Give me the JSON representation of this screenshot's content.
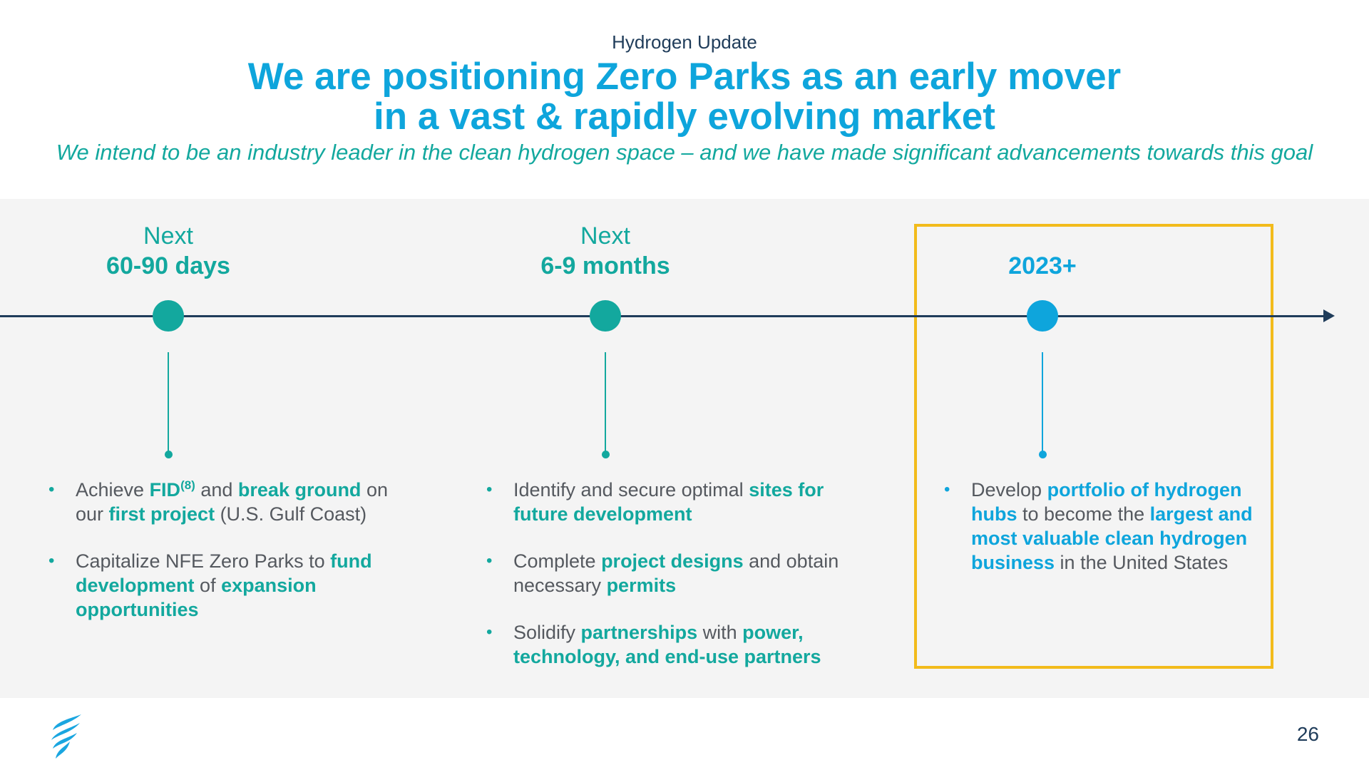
{
  "header": {
    "section_label": "Hydrogen Update",
    "title_line1": "We are positioning Zero Parks as an early mover",
    "title_line2": "in a vast & rapidly evolving market",
    "subtitle": "We intend to be an industry leader in the clean hydrogen space – and we have made significant advancements towards this goal"
  },
  "timeline": [
    {
      "pre": "Next",
      "label": "60-90 days",
      "color": "#13a89e",
      "bullets": [
        [
          {
            "t": "Achieve "
          },
          {
            "t": "FID",
            "h": true
          },
          {
            "t": "(8)",
            "sup": true
          },
          {
            "t": " and "
          },
          {
            "t": "break ground",
            "h": true
          },
          {
            "t": " on our "
          },
          {
            "t": "first project",
            "h": true
          },
          {
            "t": " (U.S. Gulf Coast)"
          }
        ],
        [
          {
            "t": "Capitalize NFE Zero Parks to "
          },
          {
            "t": "fund development",
            "h": true
          },
          {
            "t": " of "
          },
          {
            "t": "expansion opportunities",
            "h": true
          }
        ]
      ]
    },
    {
      "pre": "Next",
      "label": "6-9 months",
      "color": "#13a89e",
      "bullets": [
        [
          {
            "t": "Identify and secure optimal "
          },
          {
            "t": "sites for future development",
            "h": true
          }
        ],
        [
          {
            "t": "Complete "
          },
          {
            "t": "project designs",
            "h": true
          },
          {
            "t": " and obtain necessary "
          },
          {
            "t": "permits",
            "h": true
          }
        ],
        [
          {
            "t": "Solidify "
          },
          {
            "t": "partnerships",
            "h": true
          },
          {
            "t": " with "
          },
          {
            "t": "power, technology, and end-use partners",
            "h": true
          }
        ]
      ]
    },
    {
      "pre": "",
      "label": "2023+",
      "color": "#0ea5dc",
      "bullets": [
        [
          {
            "t": "Develop "
          },
          {
            "t": "portfolio of hydrogen hubs",
            "h": true
          },
          {
            "t": " to become the "
          },
          {
            "t": "largest and most valuable clean hydrogen business",
            "h": true
          },
          {
            "t": " in the United States"
          }
        ]
      ]
    }
  ],
  "footer": {
    "page_number": "26",
    "logo_icon": "flame-wave-logo-icon"
  },
  "colors": {
    "navy": "#1f3c5a",
    "teal": "#13a89e",
    "blue": "#0ea5dc",
    "highlight_box": "#f2bb1b",
    "band": "#f4f4f4"
  }
}
